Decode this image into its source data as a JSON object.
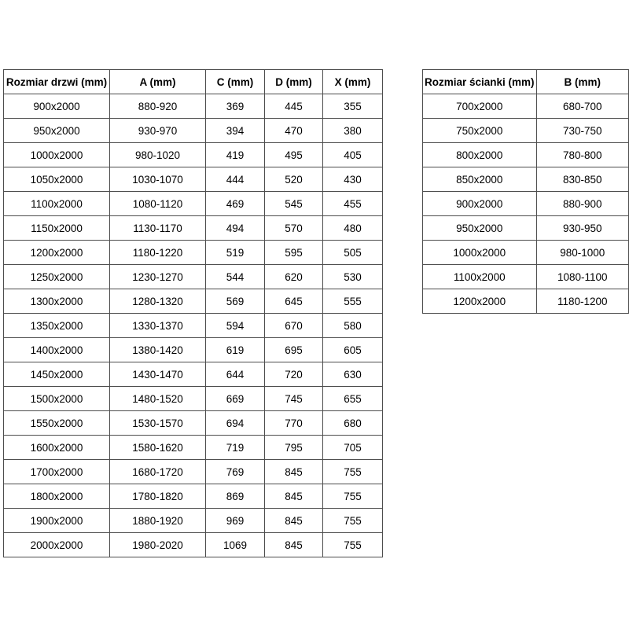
{
  "chart_data": [
    {
      "type": "table",
      "title": "Rozmiar drzwi (mm)",
      "columns": [
        "Rozmiar drzwi (mm)",
        "A (mm)",
        "C (mm)",
        "D (mm)",
        "X (mm)"
      ],
      "rows": [
        [
          "900x2000",
          "880-920",
          "369",
          "445",
          "355"
        ],
        [
          "950x2000",
          "930-970",
          "394",
          "470",
          "380"
        ],
        [
          "1000x2000",
          "980-1020",
          "419",
          "495",
          "405"
        ],
        [
          "1050x2000",
          "1030-1070",
          "444",
          "520",
          "430"
        ],
        [
          "1100x2000",
          "1080-1120",
          "469",
          "545",
          "455"
        ],
        [
          "1150x2000",
          "1130-1170",
          "494",
          "570",
          "480"
        ],
        [
          "1200x2000",
          "1180-1220",
          "519",
          "595",
          "505"
        ],
        [
          "1250x2000",
          "1230-1270",
          "544",
          "620",
          "530"
        ],
        [
          "1300x2000",
          "1280-1320",
          "569",
          "645",
          "555"
        ],
        [
          "1350x2000",
          "1330-1370",
          "594",
          "670",
          "580"
        ],
        [
          "1400x2000",
          "1380-1420",
          "619",
          "695",
          "605"
        ],
        [
          "1450x2000",
          "1430-1470",
          "644",
          "720",
          "630"
        ],
        [
          "1500x2000",
          "1480-1520",
          "669",
          "745",
          "655"
        ],
        [
          "1550x2000",
          "1530-1570",
          "694",
          "770",
          "680"
        ],
        [
          "1600x2000",
          "1580-1620",
          "719",
          "795",
          "705"
        ],
        [
          "1700x2000",
          "1680-1720",
          "769",
          "845",
          "755"
        ],
        [
          "1800x2000",
          "1780-1820",
          "869",
          "845",
          "755"
        ],
        [
          "1900x2000",
          "1880-1920",
          "969",
          "845",
          "755"
        ],
        [
          "2000x2000",
          "1980-2020",
          "1069",
          "845",
          "755"
        ]
      ]
    },
    {
      "type": "table",
      "title": "Rozmiar ścianki (mm)",
      "columns": [
        "Rozmiar ścianki (mm)",
        "B (mm)"
      ],
      "rows": [
        [
          "700x2000",
          "680-700"
        ],
        [
          "750x2000",
          "730-750"
        ],
        [
          "800x2000",
          "780-800"
        ],
        [
          "850x2000",
          "830-850"
        ],
        [
          "900x2000",
          "880-900"
        ],
        [
          "950x2000",
          "930-950"
        ],
        [
          "1000x2000",
          "980-1000"
        ],
        [
          "1100x2000",
          "1080-1100"
        ],
        [
          "1200x2000",
          "1180-1200"
        ]
      ]
    }
  ],
  "colors": {
    "border": "#4d4d4d",
    "text": "#000000",
    "background": "#ffffff"
  }
}
